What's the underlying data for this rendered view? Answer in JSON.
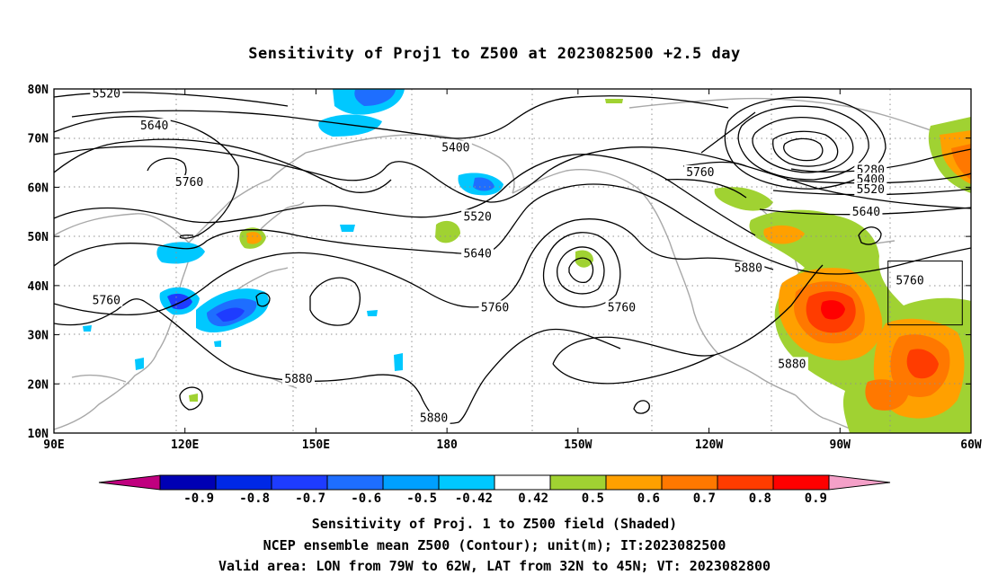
{
  "title": "Sensitivity of Proj1 to Z500 at 2023082500 +2.5 day",
  "map": {
    "lon_range": [
      90,
      300
    ],
    "lat_range": [
      10,
      80
    ],
    "lat_ticks": [
      {
        "value": 80,
        "label": "80N"
      },
      {
        "value": 70,
        "label": "70N"
      },
      {
        "value": 60,
        "label": "60N"
      },
      {
        "value": 50,
        "label": "50N"
      },
      {
        "value": 40,
        "label": "40N"
      },
      {
        "value": 30,
        "label": "30N"
      },
      {
        "value": 20,
        "label": "20N"
      },
      {
        "value": 10,
        "label": "10N"
      }
    ],
    "lon_ticks": [
      {
        "value": 90,
        "label": "90E"
      },
      {
        "value": 120,
        "label": "120E"
      },
      {
        "value": 150,
        "label": "150E"
      },
      {
        "value": 180,
        "label": "180"
      },
      {
        "value": 210,
        "label": "150W"
      },
      {
        "value": 240,
        "label": "120W"
      },
      {
        "value": 270,
        "label": "90W"
      },
      {
        "value": 300,
        "label": "60W"
      }
    ],
    "grid": "dotted",
    "contour_labels": [
      {
        "text": "5520",
        "lon": 102,
        "lat": 79
      },
      {
        "text": "5640",
        "lon": 113,
        "lat": 72.5
      },
      {
        "text": "5760",
        "lon": 121,
        "lat": 61
      },
      {
        "text": "5400",
        "lon": 182,
        "lat": 68
      },
      {
        "text": "5520",
        "lon": 187,
        "lat": 54
      },
      {
        "text": "5640",
        "lon": 187,
        "lat": 46.5
      },
      {
        "text": "5760",
        "lon": 238,
        "lat": 63
      },
      {
        "text": "5760",
        "lon": 102,
        "lat": 37
      },
      {
        "text": "5760",
        "lon": 191,
        "lat": 35.5
      },
      {
        "text": "5760",
        "lon": 220,
        "lat": 35.5
      },
      {
        "text": "5880",
        "lon": 249,
        "lat": 43.5
      },
      {
        "text": "5880",
        "lon": 146,
        "lat": 21
      },
      {
        "text": "5880",
        "lon": 177,
        "lat": 13
      },
      {
        "text": "5880",
        "lon": 259,
        "lat": 24
      },
      {
        "text": "5280",
        "lon": 277,
        "lat": 63.5
      },
      {
        "text": "5400",
        "lon": 277,
        "lat": 61.5
      },
      {
        "text": "5520",
        "lon": 277,
        "lat": 59.5
      },
      {
        "text": "5640",
        "lon": 276,
        "lat": 55
      },
      {
        "text": "5760",
        "lon": 286,
        "lat": 41
      }
    ],
    "valid_box": {
      "lon_min": 281,
      "lon_max": 298,
      "lat_min": 32,
      "lat_max": 45
    }
  },
  "colorbar": {
    "labels": [
      "-0.9",
      "-0.8",
      "-0.7",
      "-0.6",
      "-0.5",
      "-0.42",
      "0.42",
      "0.5",
      "0.6",
      "0.7",
      "0.8",
      "0.9"
    ],
    "colors": {
      "below": "#c0007f",
      "bins": [
        "#0000b4",
        "#0028e6",
        "#1e3cff",
        "#1e6eff",
        "#00a0ff",
        "#00c8ff",
        "#ffffff",
        "#a0d232",
        "#ffa000",
        "#ff7800",
        "#ff3c00",
        "#ff0000"
      ],
      "above": "#f4a0c8"
    }
  },
  "caption": {
    "line1": "Sensitivity of Proj. 1 to Z500 field (Shaded)",
    "line2": "NCEP ensemble mean Z500 (Contour); unit(m); IT:2023082500",
    "line3": "Valid area: LON from 79W to 62W, LAT from 32N to 45N; VT: 2023082800"
  }
}
